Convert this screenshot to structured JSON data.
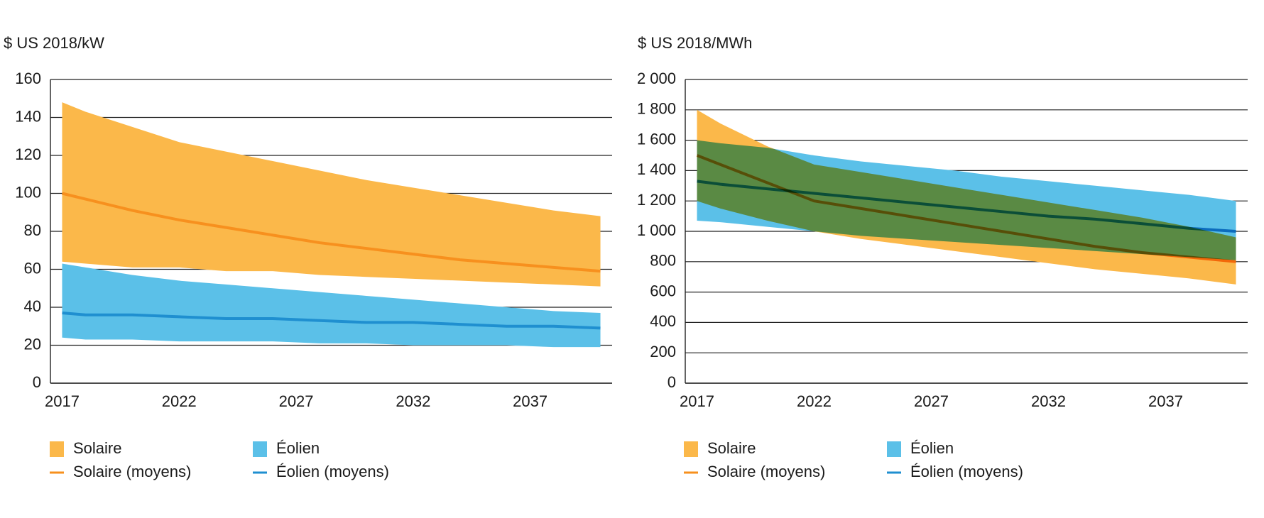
{
  "chart_data": [
    {
      "type": "area-range",
      "y_label": "$ US 2018/kW",
      "x": [
        2017,
        2018,
        2020,
        2022,
        2024,
        2026,
        2028,
        2030,
        2032,
        2034,
        2036,
        2038,
        2040
      ],
      "xlim": [
        2016.5,
        2040.5
      ],
      "xticks": [
        2017,
        2022,
        2027,
        2032,
        2037
      ],
      "ylim": [
        0,
        160
      ],
      "yticks": [
        0,
        20,
        40,
        60,
        80,
        100,
        120,
        140,
        160
      ],
      "grid": true,
      "blend": "multiply",
      "line_blend": "normal",
      "series": [
        {
          "name": "Solaire",
          "kind": "range",
          "color": "#fbb84a",
          "low": [
            64,
            63,
            61,
            61,
            59,
            59,
            57,
            56,
            55,
            54,
            53,
            52,
            51
          ],
          "high": [
            148,
            143,
            135,
            127,
            122,
            117,
            112,
            107,
            103,
            99,
            95,
            91,
            88
          ]
        },
        {
          "name": "Éolien",
          "kind": "range",
          "color": "#5bc0e8",
          "low": [
            24,
            23,
            23,
            22,
            22,
            22,
            21,
            21,
            20,
            20,
            20,
            19,
            19
          ],
          "high": [
            63,
            61,
            57,
            54,
            52,
            50,
            48,
            46,
            44,
            42,
            40,
            38,
            37
          ]
        },
        {
          "name": "Solaire (moyens)",
          "kind": "line",
          "color": "#f7901e",
          "values": [
            100,
            97,
            91,
            86,
            82,
            78,
            74,
            71,
            68,
            65,
            63,
            61,
            59
          ]
        },
        {
          "name": "Éolien (moyens)",
          "kind": "line",
          "color": "#1f8fd0",
          "values": [
            37,
            36,
            36,
            35,
            34,
            34,
            33,
            32,
            32,
            31,
            30,
            30,
            29
          ]
        }
      ]
    },
    {
      "type": "area-range",
      "y_label": "$ US 2018/MWh",
      "x": [
        2017,
        2018,
        2020,
        2022,
        2024,
        2026,
        2028,
        2030,
        2032,
        2034,
        2036,
        2038,
        2040
      ],
      "xlim": [
        2016.5,
        2040.5
      ],
      "xticks": [
        2017,
        2022,
        2027,
        2032,
        2037
      ],
      "ylim": [
        0,
        2000
      ],
      "yticks": [
        0,
        200,
        400,
        600,
        800,
        {
          "value": 1000,
          "label": "1 000"
        },
        {
          "value": 1200,
          "label": "1 200"
        },
        {
          "value": 1400,
          "label": "1 400"
        },
        {
          "value": 1600,
          "label": "1 600"
        },
        {
          "value": 1800,
          "label": "1 800"
        },
        {
          "value": 2000,
          "label": "2 000"
        }
      ],
      "grid": true,
      "blend": "multiply",
      "line_blend": "multiply",
      "series": [
        {
          "name": "Solaire",
          "kind": "range",
          "color": "#fbb84a",
          "low": [
            1200,
            1150,
            1070,
            1000,
            950,
            910,
            870,
            830,
            790,
            750,
            720,
            690,
            650
          ],
          "high": [
            1800,
            1710,
            1560,
            1440,
            1390,
            1340,
            1290,
            1240,
            1190,
            1140,
            1090,
            1030,
            960
          ]
        },
        {
          "name": "Éolien",
          "kind": "range",
          "color": "#5bc0e8",
          "low": [
            1070,
            1060,
            1030,
            1000,
            970,
            950,
            930,
            910,
            890,
            870,
            850,
            830,
            810
          ],
          "high": [
            1600,
            1580,
            1550,
            1500,
            1460,
            1430,
            1400,
            1360,
            1330,
            1300,
            1270,
            1240,
            1200
          ]
        },
        {
          "name": "Solaire (moyens)",
          "kind": "line",
          "color": "#f7901e",
          "values": [
            1500,
            1440,
            1320,
            1200,
            1150,
            1100,
            1050,
            1000,
            950,
            900,
            860,
            830,
            800
          ]
        },
        {
          "name": "Éolien (moyens)",
          "kind": "line",
          "color": "#1f8fd0",
          "values": [
            1330,
            1310,
            1280,
            1250,
            1220,
            1190,
            1160,
            1130,
            1100,
            1080,
            1050,
            1020,
            1000
          ]
        }
      ]
    }
  ]
}
